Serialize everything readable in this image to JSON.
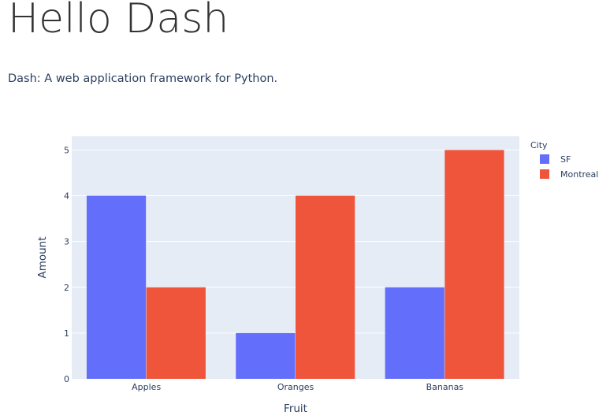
{
  "page": {
    "title": "Hello Dash",
    "subtitle": "Dash: A web application framework for Python."
  },
  "colors": {
    "plot_bg": "#e5ecf6",
    "grid": "#ffffff",
    "text": "#2a3f5f"
  },
  "chart_data": {
    "type": "bar",
    "barmode": "group",
    "xlabel": "Fruit",
    "ylabel": "Amount",
    "categories": [
      "Apples",
      "Oranges",
      "Bananas"
    ],
    "ylim": [
      0,
      5.3
    ],
    "yticks": [
      0,
      1,
      2,
      3,
      4,
      5
    ],
    "grid": true,
    "legend": {
      "title": "City",
      "position": "right"
    },
    "series": [
      {
        "name": "SF",
        "color": "#636efa",
        "values": [
          4,
          1,
          2
        ]
      },
      {
        "name": "Montreal",
        "color": "#ef553b",
        "values": [
          2,
          4,
          5
        ]
      }
    ]
  }
}
